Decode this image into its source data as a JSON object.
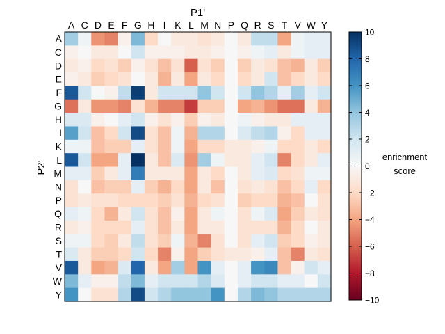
{
  "chart_data": {
    "type": "heatmap",
    "title": "",
    "xlabel": "P1'",
    "ylabel": "P2'",
    "x_categories": [
      "A",
      "C",
      "D",
      "E",
      "F",
      "G",
      "H",
      "I",
      "K",
      "L",
      "M",
      "N",
      "P",
      "Q",
      "R",
      "S",
      "T",
      "V",
      "W",
      "Y"
    ],
    "y_categories": [
      "A",
      "C",
      "D",
      "E",
      "F",
      "G",
      "H",
      "I",
      "K",
      "L",
      "M",
      "N",
      "P",
      "Q",
      "R",
      "S",
      "T",
      "V",
      "W",
      "Y"
    ],
    "colorbar": {
      "label_lines": [
        "enrichment",
        "score"
      ],
      "range": [
        -10,
        10
      ],
      "ticks": [
        10,
        8,
        6,
        4,
        2,
        0,
        -2,
        -4,
        -6,
        -8,
        -10
      ],
      "colormap": "RdBu"
    },
    "values": [
      [
        3.5,
        0.5,
        -4.5,
        -5.0,
        -0.5,
        4.5,
        -2.0,
        0.0,
        -1.0,
        -1.0,
        -1.5,
        -1.0,
        0.0,
        -1.0,
        2.5,
        2.5,
        -4.0,
        0.5,
        1.0,
        1.0
      ],
      [
        -0.5,
        0.0,
        -1.0,
        -1.0,
        0.0,
        2.0,
        -0.5,
        -0.5,
        -0.5,
        -1.0,
        -1.0,
        -0.5,
        0.0,
        -0.5,
        0.5,
        1.0,
        -1.0,
        0.5,
        1.0,
        1.0
      ],
      [
        -1.0,
        -0.5,
        -2.0,
        -1.5,
        -2.5,
        -0.5,
        -1.5,
        -3.0,
        -1.5,
        -6.0,
        -1.5,
        -2.5,
        0.0,
        -2.5,
        -1.0,
        -1.5,
        -3.0,
        -3.5,
        -1.0,
        -2.5
      ],
      [
        -0.5,
        -1.0,
        -2.5,
        -2.0,
        -1.5,
        0.0,
        -1.0,
        -3.5,
        -1.0,
        -4.0,
        -1.0,
        -2.0,
        0.0,
        -2.0,
        -1.0,
        2.0,
        -3.0,
        -2.0,
        -1.0,
        -2.0
      ],
      [
        8.5,
        2.0,
        0.0,
        -0.5,
        2.5,
        9.5,
        -1.0,
        2.0,
        2.0,
        2.0,
        4.0,
        2.0,
        0.0,
        2.0,
        4.0,
        3.0,
        1.0,
        3.5,
        1.0,
        2.0
      ],
      [
        -5.5,
        -1.0,
        -4.5,
        -4.5,
        -5.0,
        -1.5,
        -3.5,
        -5.0,
        -5.0,
        -7.0,
        -2.5,
        -2.5,
        0.0,
        -4.0,
        -3.5,
        -4.5,
        -5.5,
        -5.5,
        -1.0,
        -3.5
      ],
      [
        1.5,
        1.5,
        -0.5,
        0.0,
        1.0,
        2.0,
        -0.5,
        -1.5,
        -0.5,
        -2.5,
        -0.5,
        -1.0,
        0.0,
        0.5,
        -0.5,
        -1.0,
        -1.0,
        1.0,
        1.0,
        1.0
      ],
      [
        5.5,
        2.0,
        -3.0,
        -2.0,
        2.0,
        9.0,
        -1.5,
        -3.0,
        0.5,
        -3.5,
        3.0,
        3.0,
        0.0,
        1.5,
        2.5,
        3.0,
        -0.5,
        -2.0,
        1.0,
        1.0
      ],
      [
        0.5,
        0.5,
        -3.0,
        -2.5,
        -2.5,
        1.0,
        -1.5,
        -3.0,
        0.5,
        -4.0,
        -2.0,
        -2.0,
        -1.0,
        -1.0,
        -0.5,
        0.5,
        -2.0,
        -2.0,
        -1.0,
        -2.0
      ],
      [
        8.5,
        2.0,
        -4.0,
        -4.0,
        1.0,
        10.0,
        -1.0,
        -3.0,
        1.5,
        -4.5,
        3.5,
        0.5,
        -1.0,
        -1.0,
        1.0,
        2.0,
        -5.0,
        -2.0,
        -1.0,
        1.0
      ],
      [
        1.0,
        1.0,
        -2.5,
        -1.0,
        1.0,
        7.0,
        -1.0,
        -1.0,
        -1.0,
        -4.0,
        -1.0,
        -2.0,
        0.0,
        -1.0,
        1.0,
        1.5,
        -2.0,
        -1.5,
        0.5,
        0.5
      ],
      [
        -1.5,
        0.0,
        -3.0,
        -2.5,
        -2.5,
        1.0,
        -2.5,
        -3.5,
        -2.0,
        -4.0,
        -1.0,
        -3.0,
        0.0,
        -1.5,
        -1.0,
        -1.5,
        -3.0,
        -2.0,
        1.0,
        -2.0
      ],
      [
        -1.5,
        -1.0,
        -1.5,
        -1.5,
        -2.0,
        -2.0,
        -2.0,
        -2.5,
        -1.5,
        -3.5,
        -2.0,
        -1.5,
        0.0,
        -2.5,
        -2.0,
        -2.0,
        -3.5,
        -3.0,
        0.0,
        -1.5
      ],
      [
        1.0,
        0.5,
        -2.0,
        -3.5,
        -1.0,
        2.0,
        -1.5,
        -3.0,
        -0.5,
        -4.0,
        -1.0,
        0.5,
        0.0,
        -1.5,
        0.5,
        1.5,
        -4.0,
        -2.5,
        -1.0,
        -1.5
      ],
      [
        -1.0,
        -0.5,
        -2.0,
        -2.0,
        -2.0,
        1.0,
        -1.5,
        -3.0,
        -1.0,
        -4.0,
        -1.0,
        -1.0,
        0.0,
        -1.5,
        -1.5,
        -1.5,
        -3.5,
        -2.0,
        0.0,
        -1.0
      ],
      [
        0.5,
        0.5,
        -2.0,
        -2.5,
        -1.0,
        2.5,
        -1.5,
        -2.5,
        0.5,
        -3.5,
        -5.0,
        -1.5,
        0.0,
        -1.5,
        1.0,
        2.0,
        -2.5,
        -2.0,
        -0.5,
        -1.0
      ],
      [
        1.5,
        -1.0,
        -2.5,
        -2.5,
        -2.0,
        2.0,
        -2.0,
        -5.0,
        -0.5,
        -4.0,
        -2.5,
        -1.5,
        -1.0,
        -1.0,
        -0.5,
        1.0,
        -3.0,
        -5.0,
        -1.0,
        -1.5
      ],
      [
        8.5,
        -1.0,
        -4.0,
        -3.5,
        1.5,
        8.0,
        -1.0,
        -4.0,
        3.5,
        -4.0,
        6.0,
        1.0,
        0.0,
        1.0,
        6.0,
        6.5,
        -3.0,
        -0.5,
        2.0,
        1.0
      ],
      [
        4.5,
        1.0,
        -0.5,
        -0.5,
        2.5,
        4.5,
        1.0,
        2.0,
        2.0,
        2.0,
        3.0,
        1.5,
        0.0,
        1.0,
        2.0,
        2.0,
        1.0,
        1.0,
        0.0,
        2.0
      ],
      [
        6.0,
        0.0,
        -1.5,
        -1.5,
        3.0,
        9.0,
        2.0,
        3.0,
        4.0,
        4.0,
        4.0,
        6.0,
        0.0,
        3.0,
        4.5,
        4.0,
        3.0,
        3.0,
        3.0,
        3.0
      ]
    ]
  }
}
